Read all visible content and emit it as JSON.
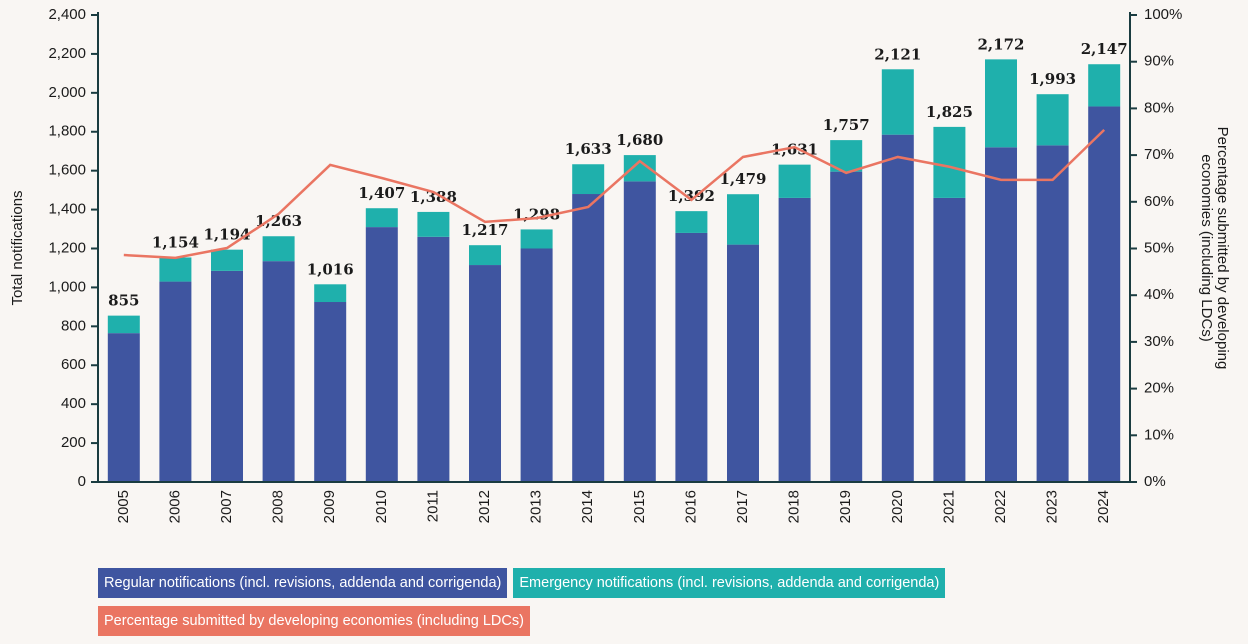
{
  "chart_data": {
    "type": "bar",
    "stacked": true,
    "ylabel": "Total notifications",
    "y2label": [
      "Percentage submitted by developing",
      "economies (including LDCs)"
    ],
    "categories": [
      "2005",
      "2006",
      "2007",
      "2008",
      "2009",
      "2010",
      "2011",
      "2012",
      "2013",
      "2014",
      "2015",
      "2016",
      "2017",
      "2018",
      "2019",
      "2020",
      "2021",
      "2022",
      "2023",
      "2024"
    ],
    "series": [
      {
        "name": "Regular notifications (incl. revisions, addenda and corrigenda)",
        "type": "bar",
        "color": "#3f55a0",
        "values": [
          765,
          1030,
          1085,
          1135,
          925,
          1310,
          1260,
          1115,
          1200,
          1480,
          1545,
          1280,
          1220,
          1460,
          1595,
          1785,
          1460,
          1720,
          1730,
          1930
        ]
      },
      {
        "name": "Emergency notifications (incl. revisions, addenda and corrigenda)",
        "type": "bar",
        "color": "#1fb0ac",
        "values": [
          90,
          124,
          109,
          128,
          91,
          97,
          128,
          102,
          98,
          153,
          135,
          112,
          259,
          171,
          162,
          336,
          365,
          452,
          263,
          217
        ]
      },
      {
        "name": "Percentage submitted by developing economies (including LDCs)",
        "type": "line",
        "axis": "y2",
        "color": "#ea7562",
        "values": [
          48.6,
          48.0,
          50.1,
          57.4,
          67.9,
          65.1,
          62.1,
          55.7,
          56.5,
          58.9,
          68.7,
          60.4,
          69.6,
          71.7,
          66.2,
          69.6,
          67.5,
          64.7,
          64.7,
          75.4
        ]
      }
    ],
    "totals": [
      855,
      1154,
      1194,
      1263,
      1016,
      1407,
      1388,
      1217,
      1298,
      1633,
      1680,
      1392,
      1479,
      1631,
      1757,
      2121,
      1825,
      2172,
      1993,
      2147
    ],
    "total_labels": [
      "855",
      "1,154",
      "1,194",
      "1,263",
      "1,016",
      "1,407",
      "1,388",
      "1,217",
      "1,298",
      "1,633",
      "1,680",
      "1,392",
      "1,479",
      "1,631",
      "1,757",
      "2,121",
      "1,825",
      "2,172",
      "1,993",
      "2,147"
    ],
    "ylim": [
      0,
      2400
    ],
    "yticks": [
      0,
      200,
      400,
      600,
      800,
      {
        "value": 1000,
        "label": "1,000"
      },
      {
        "value": 1200,
        "label": "1,200"
      },
      {
        "value": 1400,
        "label": "1,400"
      },
      {
        "value": 1600,
        "label": "1,600"
      },
      {
        "value": 1800,
        "label": "1,800"
      },
      {
        "value": 2000,
        "label": "2,000"
      },
      {
        "value": 2200,
        "label": "2,200"
      },
      {
        "value": 2400,
        "label": "2,400"
      }
    ],
    "y2lim": [
      0,
      100
    ],
    "y2ticks": [
      {
        "value": 0,
        "label": "0%"
      },
      {
        "value": 10,
        "label": "10%"
      },
      {
        "value": 20,
        "label": "20%"
      },
      {
        "value": 30,
        "label": "30%"
      },
      {
        "value": 40,
        "label": "40%"
      },
      {
        "value": 50,
        "label": "50%"
      },
      {
        "value": 60,
        "label": "60%"
      },
      {
        "value": 70,
        "label": "70%"
      },
      {
        "value": 80,
        "label": "80%"
      },
      {
        "value": 90,
        "label": "90%"
      },
      {
        "value": 100,
        "label": "100%"
      }
    ],
    "axis_color": "#1a3c40",
    "grid": false
  }
}
